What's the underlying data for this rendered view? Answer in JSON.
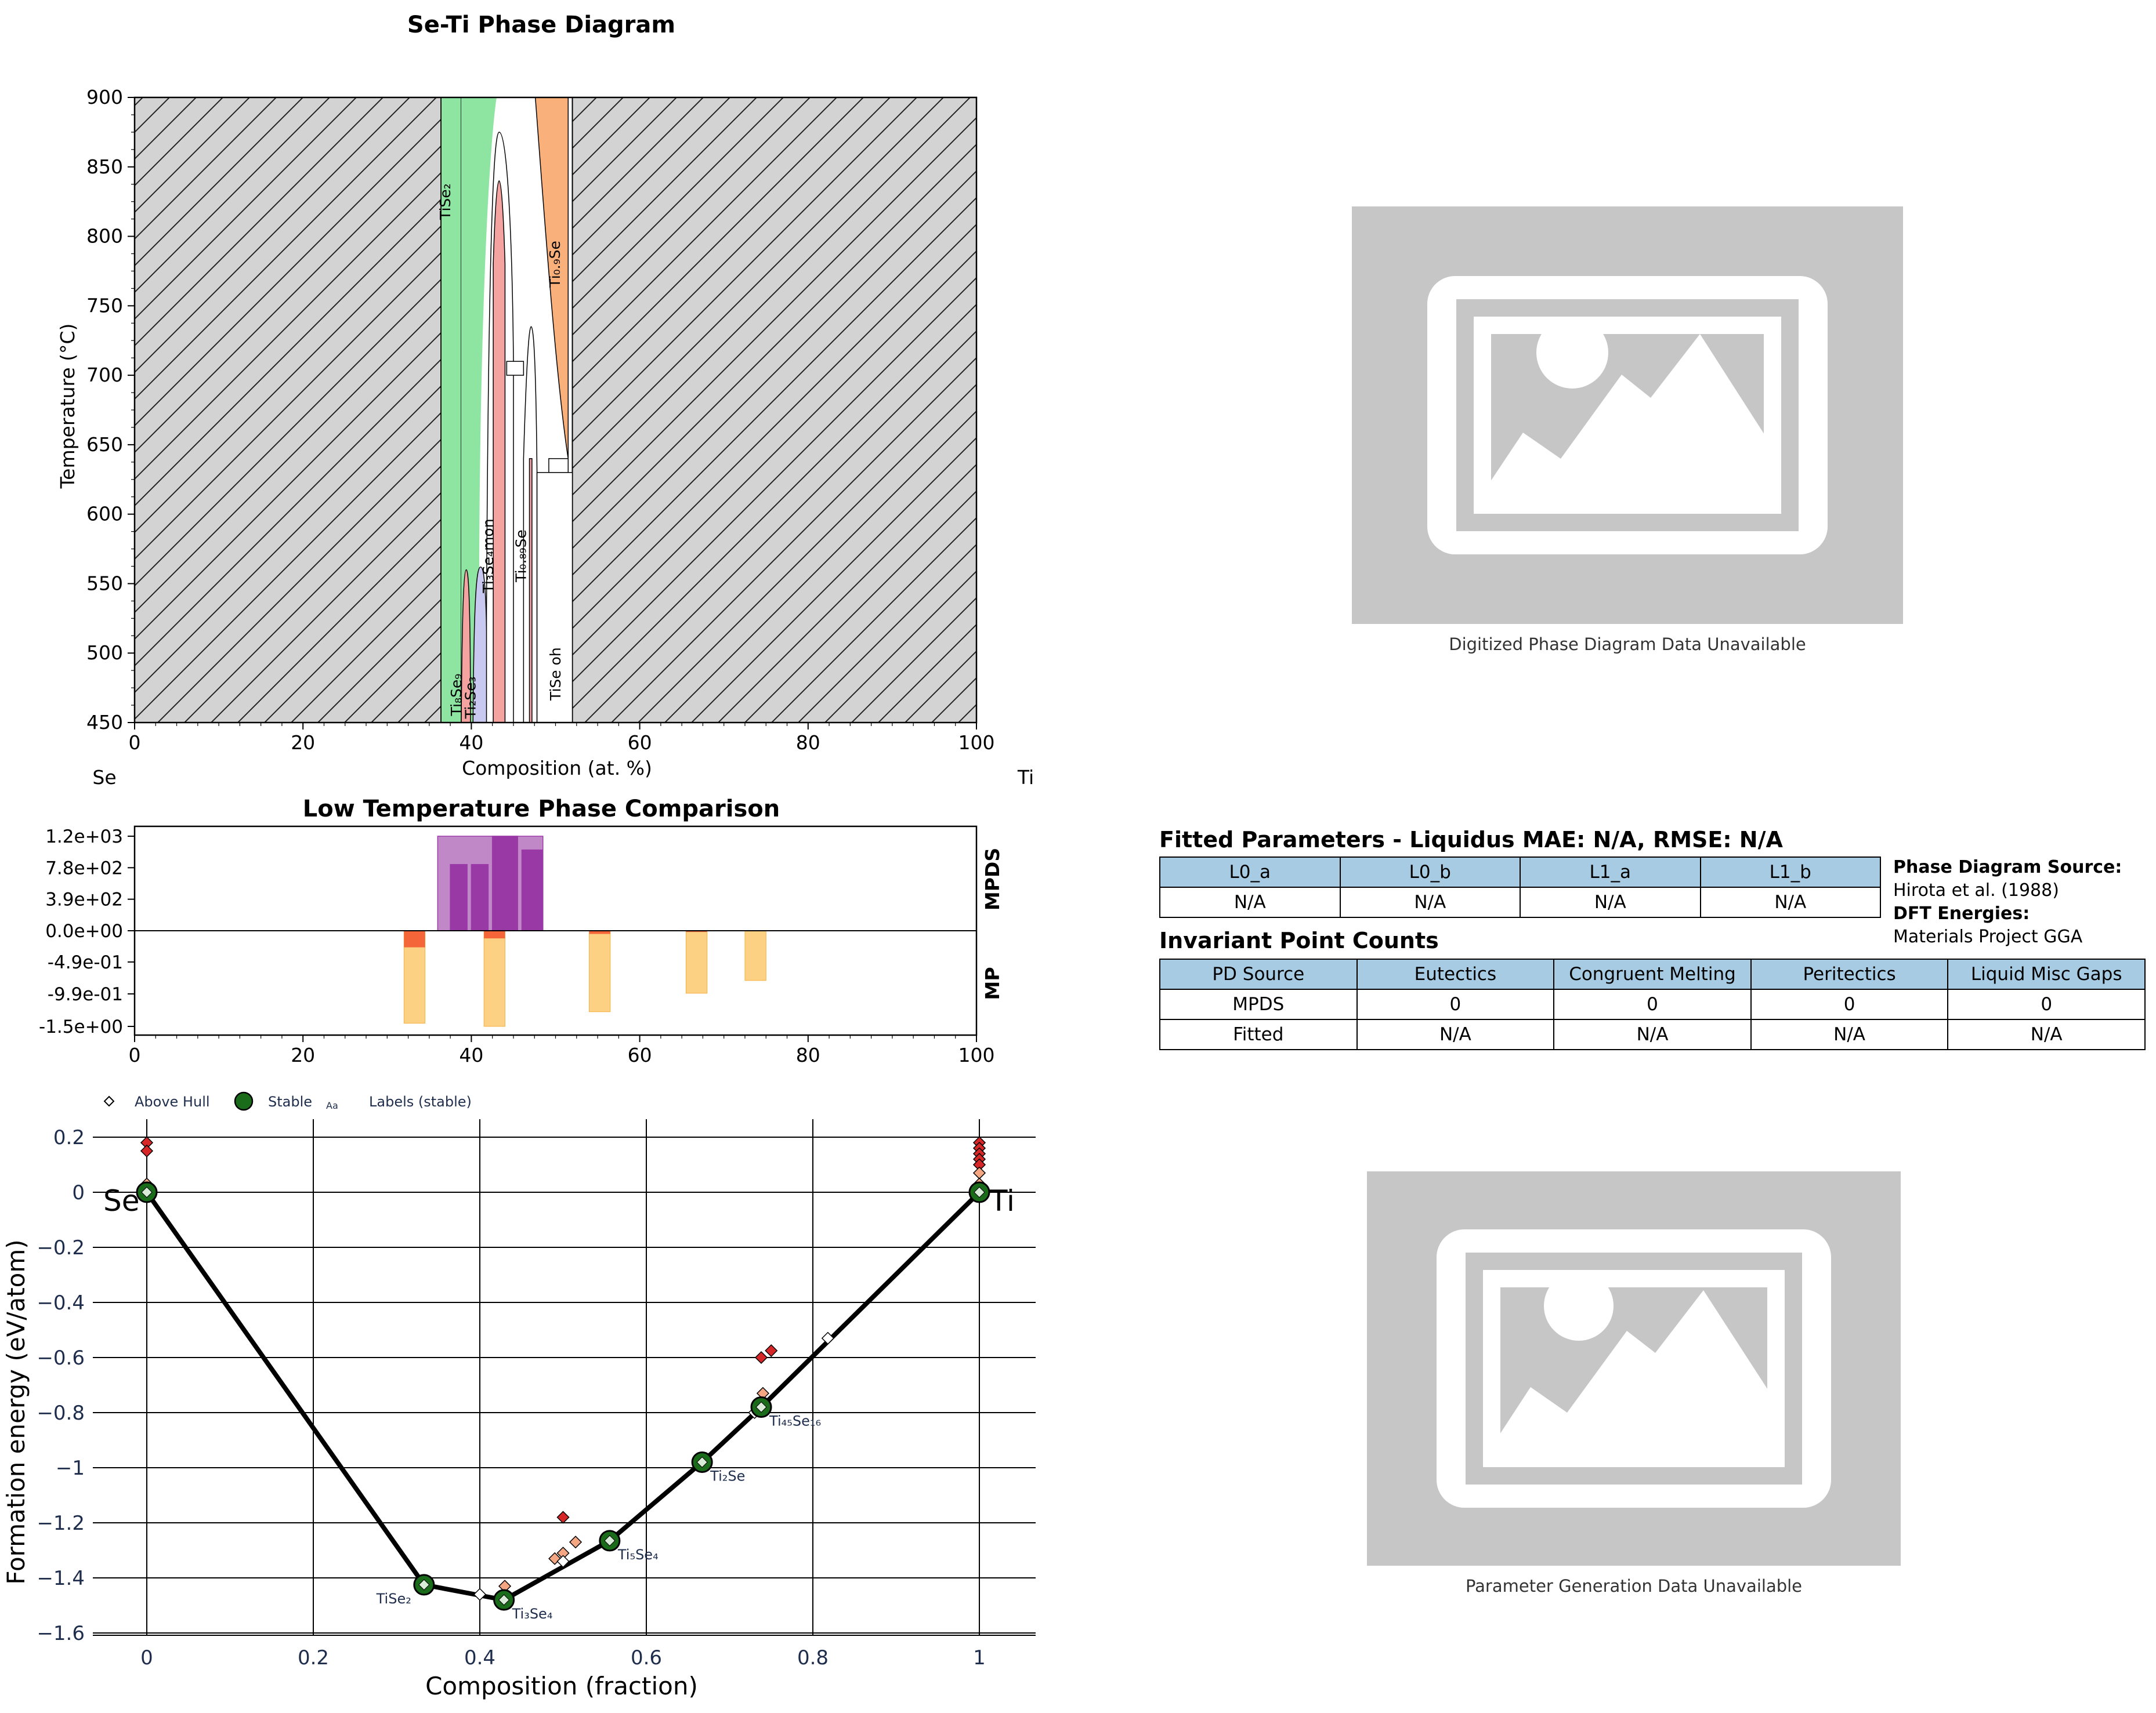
{
  "phase_diagram": {
    "title": "Se-Ti Phase Diagram",
    "xlabel": "Composition (at. %)",
    "ylabel": "Temperature (°C)",
    "left_element": "Se",
    "right_element": "Ti",
    "xlim": [
      0,
      100
    ],
    "ylim": [
      450,
      900
    ],
    "xticks": [
      "0",
      "20",
      "40",
      "60",
      "80",
      "100"
    ],
    "yticks": [
      "450",
      "500",
      "550",
      "600",
      "650",
      "700",
      "750",
      "800",
      "850",
      "900"
    ],
    "phase_labels": [
      {
        "text": "TiSe₂",
        "x": 37.5,
        "y": 825
      },
      {
        "text": "Ti₃Se₄mon",
        "x": 42.6,
        "y": 570
      },
      {
        "text": "Ti₀.₉Se",
        "x": 50.5,
        "y": 780
      },
      {
        "text": "Ti₀.₈₉Se",
        "x": 46.5,
        "y": 570
      },
      {
        "text": "TiSe oh",
        "x": 50.6,
        "y": 485
      },
      {
        "text": "Ti₈Se₉",
        "x": 38.8,
        "y": 470
      },
      {
        "text": "Ti₂Se₃",
        "x": 40.5,
        "y": 468
      }
    ],
    "colors": {
      "TiSe2": "#8ee5a2",
      "Ti3Se4": "#f4a3a0",
      "Ti09Se": "#f9b07a",
      "Ti2Se3": "#c8c8f0",
      "hatch": "#d3d3d3"
    }
  },
  "comparison": {
    "title": "Low Temperature Phase Comparison",
    "yticks": [
      "1.2e+03",
      "7.8e+02",
      "3.9e+02",
      "0.0e+00",
      "-4.9e-01",
      "-9.9e-01",
      "-1.5e+00"
    ],
    "xticks": [
      "0",
      "20",
      "40",
      "60",
      "80",
      "100"
    ],
    "top_label": "MPDS",
    "bottom_label": "MP",
    "mpds_bars": [
      {
        "x0": 36,
        "x1": 48.5,
        "value": 1170
      },
      {
        "x0": 37.5,
        "x1": 39.5,
        "value": 820
      },
      {
        "x0": 40,
        "x1": 42,
        "value": 820
      },
      {
        "x0": 42.5,
        "x1": 45.5,
        "value": 1170
      },
      {
        "x0": 46,
        "x1": 48.5,
        "value": 1000
      }
    ],
    "mp_bars": [
      {
        "x0": 32,
        "x1": 34.5,
        "value": -1.45,
        "cap": -0.26
      },
      {
        "x0": 41.5,
        "x1": 44,
        "value": -1.5,
        "cap": -0.12
      },
      {
        "x0": 54,
        "x1": 56.5,
        "value": -1.27,
        "cap": -0.05
      },
      {
        "x0": 65.5,
        "x1": 68,
        "value": -0.98,
        "cap": -0.02
      },
      {
        "x0": 72.5,
        "x1": 75,
        "value": -0.78,
        "cap": 0
      }
    ]
  },
  "hull": {
    "xlabel": "Composition (fraction)",
    "ylabel": "Formation energy (eV/atom)",
    "xticks": [
      "0",
      "0.2",
      "0.4",
      "0.6",
      "0.8",
      "1"
    ],
    "yticks": [
      "0.2",
      "0",
      "−0.2",
      "−0.4",
      "−0.6",
      "−0.8",
      "−1",
      "−1.2",
      "−1.4",
      "−1.6"
    ],
    "left_element": "Se",
    "right_element": "Ti",
    "legend": {
      "above_hull": "Above Hull",
      "stable": "Stable",
      "labels_marker": "Aa",
      "labels": "Labels (stable)"
    },
    "stable_points": [
      {
        "x": 0,
        "y": 0,
        "label": ""
      },
      {
        "x": 0.333,
        "y": -1.425,
        "label": "TiSe₂"
      },
      {
        "x": 0.429,
        "y": -1.48,
        "label": "Ti₃Se₄"
      },
      {
        "x": 0.556,
        "y": -1.265,
        "label": "Ti₅Se₄"
      },
      {
        "x": 0.667,
        "y": -0.98,
        "label": "Ti₂Se"
      },
      {
        "x": 0.738,
        "y": -0.78,
        "label": "Ti₄₅Se₁₆"
      },
      {
        "x": 1,
        "y": 0,
        "label": ""
      }
    ],
    "above_hull_points": [
      {
        "x": 0,
        "y": 0.18,
        "c": "#d62728"
      },
      {
        "x": 0,
        "y": 0.15,
        "c": "#d62728"
      },
      {
        "x": 0,
        "y": 0.03,
        "c": "#f4a582"
      },
      {
        "x": 0,
        "y": 0.01,
        "c": "#ffffff"
      },
      {
        "x": 0.4,
        "y": -1.46,
        "c": "#ffffff"
      },
      {
        "x": 0.43,
        "y": -1.43,
        "c": "#f4a582"
      },
      {
        "x": 0.5,
        "y": -1.18,
        "c": "#d62728"
      },
      {
        "x": 0.49,
        "y": -1.33,
        "c": "#f4a582"
      },
      {
        "x": 0.5,
        "y": -1.31,
        "c": "#f4a582"
      },
      {
        "x": 0.5,
        "y": -1.34,
        "c": "#ffffff"
      },
      {
        "x": 0.515,
        "y": -1.27,
        "c": "#f4a582"
      },
      {
        "x": 0.738,
        "y": -0.6,
        "c": "#d62728"
      },
      {
        "x": 0.75,
        "y": -0.575,
        "c": "#d62728"
      },
      {
        "x": 0.74,
        "y": -0.73,
        "c": "#f4a582"
      },
      {
        "x": 0.73,
        "y": -0.8,
        "c": "#ffffff"
      },
      {
        "x": 0.818,
        "y": -0.53,
        "c": "#ffffff"
      },
      {
        "x": 1,
        "y": 0.18,
        "c": "#d62728"
      },
      {
        "x": 1,
        "y": 0.16,
        "c": "#d62728"
      },
      {
        "x": 1,
        "y": 0.14,
        "c": "#d62728"
      },
      {
        "x": 1,
        "y": 0.12,
        "c": "#d62728"
      },
      {
        "x": 1,
        "y": 0.1,
        "c": "#d62728"
      },
      {
        "x": 1,
        "y": 0.07,
        "c": "#f4a582"
      },
      {
        "x": 1,
        "y": 0.03,
        "c": "#f4a582"
      },
      {
        "x": 1,
        "y": 0.01,
        "c": "#ffffff"
      }
    ]
  },
  "placeholders": {
    "top_caption": "Digitized Phase Diagram Data Unavailable",
    "bottom_caption": "Parameter Generation Data Unavailable"
  },
  "fitted": {
    "title": "Fitted Parameters - Liquidus MAE: N/A, RMSE: N/A",
    "headers": [
      "L0_a",
      "L0_b",
      "L1_a",
      "L1_b"
    ],
    "values": [
      "N/A",
      "N/A",
      "N/A",
      "N/A"
    ]
  },
  "source": {
    "pd_label": "Phase Diagram Source:",
    "pd_value": "Hirota et al. (1988)",
    "dft_label": "DFT Energies:",
    "dft_value": "Materials Project GGA"
  },
  "invariant": {
    "title": "Invariant Point Counts",
    "headers": [
      "PD Source",
      "Eutectics",
      "Congruent Melting",
      "Peritectics",
      "Liquid Misc Gaps"
    ],
    "rows": [
      [
        "MPDS",
        "0",
        "0",
        "0",
        "0"
      ],
      [
        "Fitted",
        "N/A",
        "N/A",
        "N/A",
        "N/A"
      ]
    ]
  }
}
